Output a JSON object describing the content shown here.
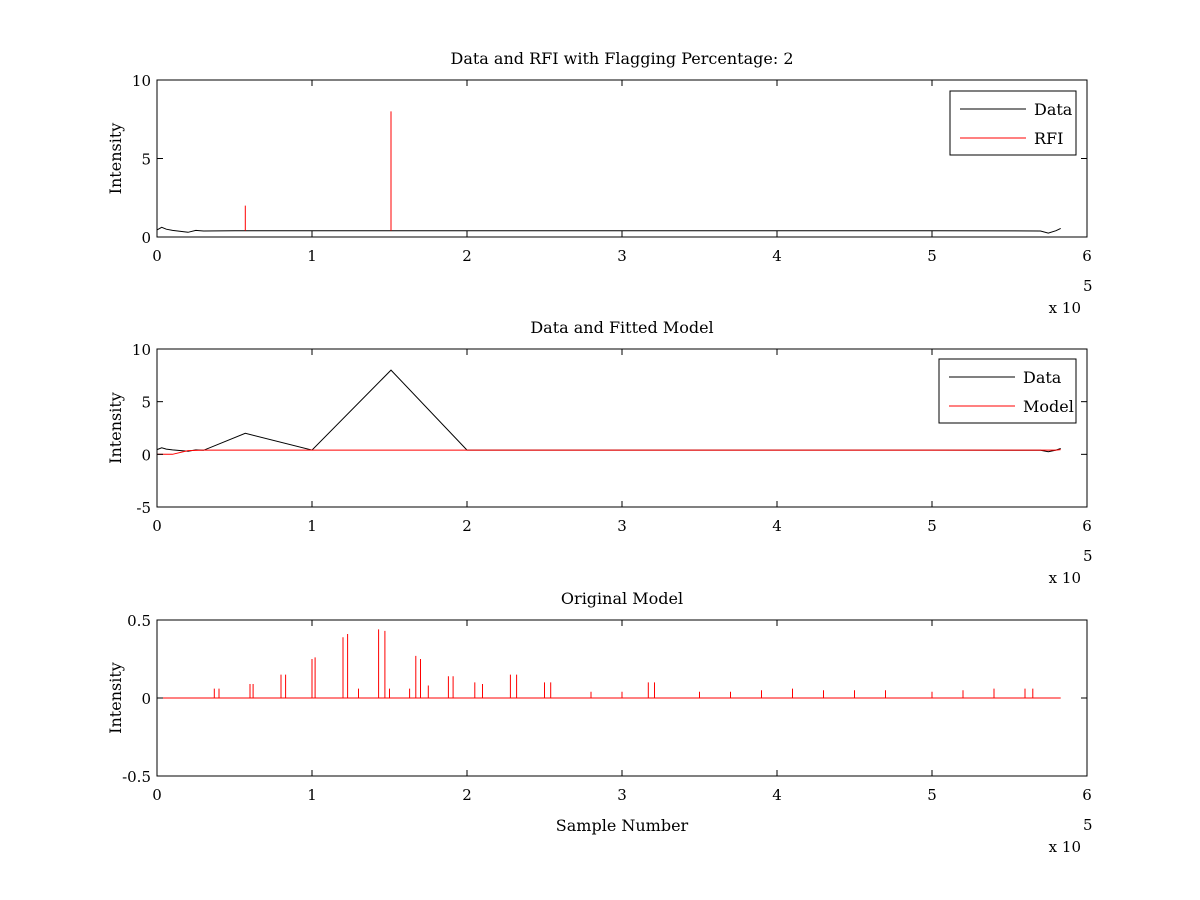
{
  "chart_data": [
    {
      "type": "line",
      "title": "Data and RFI with Flagging Percentage: 2",
      "xlabel": "",
      "ylabel": "Intensity",
      "xlim": [
        0,
        600000
      ],
      "ylim": [
        0,
        10
      ],
      "xticks": [
        0,
        1,
        2,
        3,
        4,
        5,
        6
      ],
      "yticks": [
        0,
        5,
        10
      ],
      "x_multiplier": "x 10",
      "x_multiplier_exp": "5",
      "legend": {
        "position": "top-right",
        "entries": [
          "Data",
          "RFI"
        ]
      },
      "colors": {
        "Data": "#000000",
        "RFI": "#ff0000"
      },
      "series": [
        {
          "name": "Data",
          "x": [
            0,
            3000,
            6000,
            10000,
            20000,
            25000,
            30000,
            50000,
            100000,
            200000,
            300000,
            400000,
            500000,
            570000,
            575000,
            580000,
            583000
          ],
          "values": [
            0.45,
            0.62,
            0.5,
            0.42,
            0.3,
            0.42,
            0.38,
            0.4,
            0.4,
            0.4,
            0.4,
            0.4,
            0.4,
            0.38,
            0.25,
            0.4,
            0.55
          ]
        },
        {
          "name": "RFI",
          "x": [
            57000,
            151000
          ],
          "values": [
            2.0,
            8.0
          ]
        }
      ]
    },
    {
      "type": "line",
      "title": "Data and Fitted Model",
      "xlabel": "",
      "ylabel": "Intensity",
      "xlim": [
        0,
        600000
      ],
      "ylim": [
        -5,
        10
      ],
      "xticks": [
        0,
        1,
        2,
        3,
        4,
        5,
        6
      ],
      "yticks": [
        -5,
        0,
        5,
        10
      ],
      "x_multiplier": "x 10",
      "x_multiplier_exp": "5",
      "legend": {
        "position": "top-right",
        "entries": [
          "Data",
          "Model"
        ]
      },
      "colors": {
        "Data": "#000000",
        "Model": "#ff0000"
      },
      "series": [
        {
          "name": "Data",
          "x": [
            0,
            3000,
            6000,
            10000,
            20000,
            25000,
            30000,
            57000,
            100000,
            151000,
            200000,
            300000,
            400000,
            500000,
            570000,
            575000,
            580000,
            583000
          ],
          "values": [
            0.45,
            0.62,
            0.5,
            0.42,
            0.3,
            0.42,
            0.38,
            2.0,
            0.4,
            8.0,
            0.4,
            0.4,
            0.4,
            0.4,
            0.38,
            0.25,
            0.4,
            0.55
          ]
        },
        {
          "name": "Model",
          "x": [
            0,
            10000,
            20000,
            30000,
            100000,
            200000,
            300000,
            400000,
            500000,
            580000,
            583000
          ],
          "values": [
            0.0,
            0.0,
            0.35,
            0.4,
            0.4,
            0.4,
            0.4,
            0.4,
            0.4,
            0.4,
            0.45
          ]
        }
      ]
    },
    {
      "type": "line",
      "title": "Original Model",
      "xlabel": "Sample Number",
      "ylabel": "Intensity",
      "xlim": [
        0,
        600000
      ],
      "ylim": [
        -0.5,
        0.5
      ],
      "xticks": [
        0,
        1,
        2,
        3,
        4,
        5,
        6
      ],
      "yticks": [
        -0.5,
        0,
        0.5
      ],
      "x_multiplier": "x 10",
      "x_multiplier_exp": "5",
      "colors": {
        "line": "#ff0000"
      },
      "series": [
        {
          "x": [
            0,
            583000
          ],
          "values": [
            0,
            0
          ],
          "peaks": [
            [
              37000,
              0.06
            ],
            [
              40000,
              0.06
            ],
            [
              60000,
              0.09
            ],
            [
              62000,
              0.09
            ],
            [
              80000,
              0.15
            ],
            [
              83000,
              0.15
            ],
            [
              100000,
              0.25
            ],
            [
              102000,
              0.26
            ],
            [
              120000,
              0.39
            ],
            [
              123000,
              0.41
            ],
            [
              143000,
              0.44
            ],
            [
              147000,
              0.43
            ],
            [
              130000,
              0.06
            ],
            [
              150000,
              0.06
            ],
            [
              163000,
              0.06
            ],
            [
              167000,
              0.27
            ],
            [
              170000,
              0.25
            ],
            [
              175000,
              0.08
            ],
            [
              188000,
              0.14
            ],
            [
              191000,
              0.14
            ],
            [
              205000,
              0.1
            ],
            [
              210000,
              0.09
            ],
            [
              228000,
              0.15
            ],
            [
              232000,
              0.15
            ],
            [
              250000,
              0.1
            ],
            [
              254000,
              0.1
            ],
            [
              280000,
              0.04
            ],
            [
              300000,
              0.04
            ],
            [
              317000,
              0.1
            ],
            [
              321000,
              0.1
            ],
            [
              350000,
              0.04
            ],
            [
              370000,
              0.04
            ],
            [
              390000,
              0.05
            ],
            [
              410000,
              0.06
            ],
            [
              430000,
              0.05
            ],
            [
              450000,
              0.05
            ],
            [
              470000,
              0.05
            ],
            [
              500000,
              0.04
            ],
            [
              520000,
              0.05
            ],
            [
              540000,
              0.06
            ],
            [
              560000,
              0.06
            ],
            [
              565000,
              0.06
            ]
          ]
        }
      ]
    }
  ]
}
